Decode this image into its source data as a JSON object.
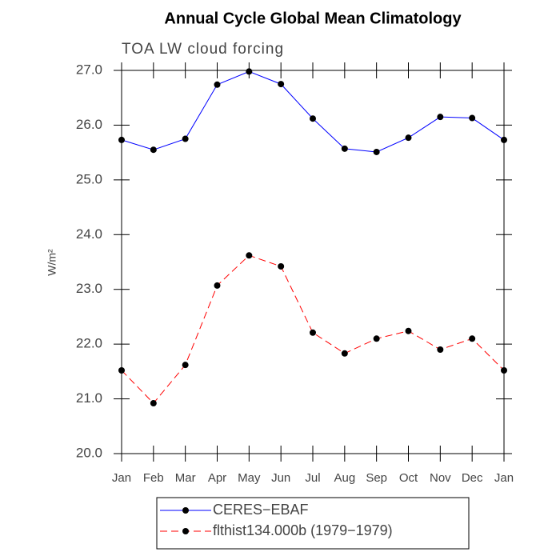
{
  "chart_data": {
    "type": "line",
    "title": "Annual Cycle Global Mean Climatology",
    "subtitle": "TOA LW cloud forcing",
    "y_label": "W/m²",
    "categories": [
      "Jan",
      "Feb",
      "Mar",
      "Apr",
      "May",
      "Jun",
      "Jul",
      "Aug",
      "Sep",
      "Oct",
      "Nov",
      "Dec",
      "Jan"
    ],
    "series": [
      {
        "name": "CERES−EBAF",
        "color": "#0000ff",
        "dashed": false,
        "values": [
          25.73,
          25.55,
          25.75,
          26.74,
          26.98,
          26.75,
          26.12,
          25.57,
          25.51,
          25.77,
          26.15,
          26.13,
          25.73
        ]
      },
      {
        "name": "flthist134.000b (1979−1979)",
        "color": "#ff0000",
        "dashed": true,
        "values": [
          21.52,
          20.92,
          21.62,
          23.07,
          23.62,
          23.42,
          22.21,
          21.83,
          22.1,
          22.24,
          21.9,
          22.1,
          21.52
        ]
      }
    ],
    "ylim": [
      20,
      27
    ],
    "yticks": [
      {
        "value": 20,
        "label": "20.0"
      },
      {
        "value": 21,
        "label": "21.0"
      },
      {
        "value": 22,
        "label": "22.0"
      },
      {
        "value": 23,
        "label": "23.0"
      },
      {
        "value": 24,
        "label": "24.0"
      },
      {
        "value": 25,
        "label": "25.0"
      },
      {
        "value": 26,
        "label": "26.0"
      },
      {
        "value": 27,
        "label": "27.0"
      }
    ],
    "legend": "bottom"
  }
}
